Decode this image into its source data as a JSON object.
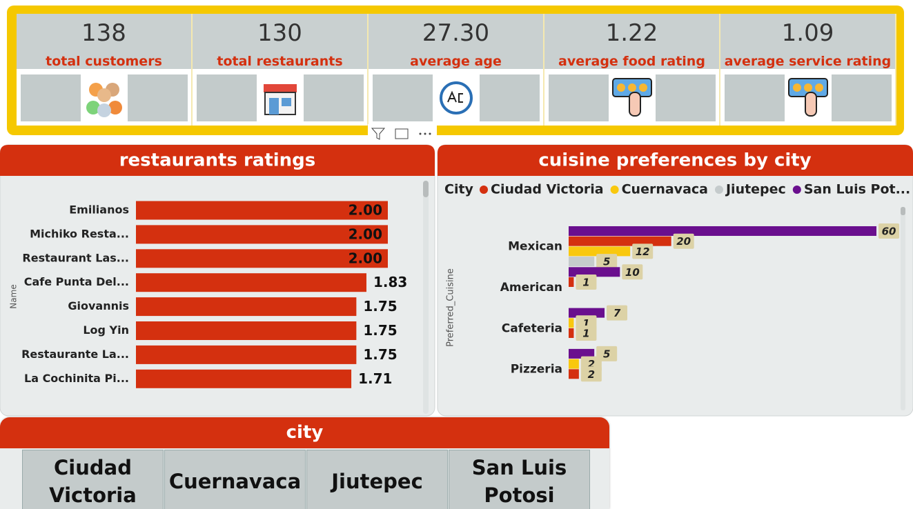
{
  "kpis": [
    {
      "value": "138",
      "label": "total customers"
    },
    {
      "value": "130",
      "label": "total restaurants"
    },
    {
      "value": "27.30",
      "label": "average age"
    },
    {
      "value": "1.22",
      "label": "average food rating"
    },
    {
      "value": "1.09",
      "label": "average service rating"
    }
  ],
  "chart_data": [
    {
      "type": "hbar",
      "title": "restaurants ratings",
      "y_label": "Name",
      "categories": [
        "Emilianos",
        "Michiko Resta...",
        "Restaurant Las...",
        "Cafe Punta Del...",
        "Giovannis",
        "Log Yin",
        "Restaurante La...",
        "La Cochinita Pi..."
      ],
      "values": [
        2,
        2,
        2,
        1.83,
        1.75,
        1.75,
        1.75,
        1.71
      ],
      "value_labels": [
        "2.00",
        "2.00",
        "2.00",
        "1.83",
        "1.75",
        "1.75",
        "1.75",
        "1.71"
      ],
      "color": "#d4300f"
    },
    {
      "type": "grouped_hbar",
      "title": "cuisine preferences by city",
      "y_label": "Preferred_Cuisine",
      "legend_title": "City",
      "categories": [
        "Mexican",
        "American",
        "Cafeteria",
        "Pizzeria"
      ],
      "series": [
        {
          "name": "Ciudad Victoria",
          "color": "#d4300f",
          "values": [
            20,
            1,
            1,
            2
          ]
        },
        {
          "name": "Cuernavaca",
          "color": "#f9c80e",
          "values": [
            12,
            null,
            1,
            2
          ]
        },
        {
          "name": "Jiutepec",
          "color": "#c5cbcc",
          "values": [
            5,
            null,
            null,
            null
          ]
        },
        {
          "name": "San Luis Pot...",
          "color": "#6a0f8e",
          "values": [
            60,
            10,
            7,
            5
          ]
        }
      ]
    }
  ],
  "slicer": {
    "title": "city",
    "items": [
      "Ciudad Victoria",
      "Cuernavaca",
      "Jiutepec",
      "San Luis Potosi"
    ]
  }
}
